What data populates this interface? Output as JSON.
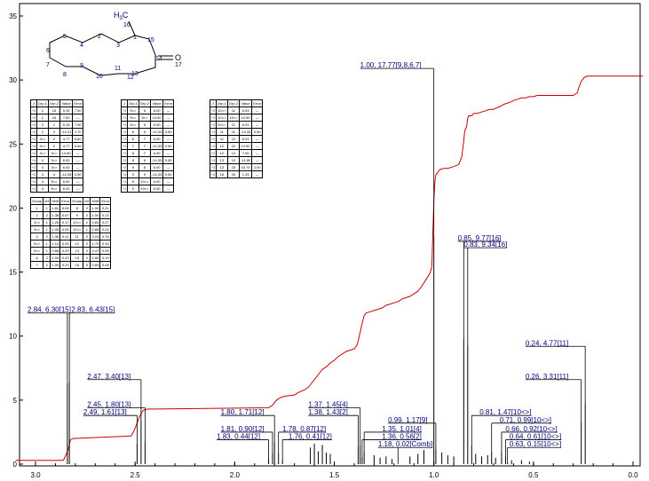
{
  "chart_data": {
    "type": "line",
    "title": "",
    "xlabel": "",
    "ylabel": "",
    "xlim": [
      3.12,
      -0.05
    ],
    "ylim": [
      0,
      37
    ],
    "x_ticks": [
      3.0,
      2.5,
      2.0,
      1.5,
      1.0,
      0.5,
      0.0
    ],
    "x_tick_labels": [
      "3.0",
      "2.5",
      "2.0",
      "1.5",
      "1.0",
      "0.5",
      "0.0"
    ],
    "y_ticks": [
      0,
      5,
      10,
      15,
      20,
      25,
      30,
      35
    ],
    "y_tick_labels": [
      "0",
      "5",
      "10",
      "15",
      "20",
      "25",
      "30",
      "35"
    ],
    "spectrum_peaks": [
      {
        "shift": 2.84,
        "height": 6.3
      },
      {
        "shift": 2.83,
        "height": 6.43
      },
      {
        "shift": 2.47,
        "height": 3.4
      },
      {
        "shift": 2.45,
        "height": 1.8
      },
      {
        "shift": 2.49,
        "height": 1.61
      },
      {
        "shift": 1.8,
        "height": 1.71
      },
      {
        "shift": 1.81,
        "height": 0.9
      },
      {
        "shift": 1.83,
        "height": 0.44
      },
      {
        "shift": 1.78,
        "height": 0.87
      },
      {
        "shift": 1.76,
        "height": 0.41
      },
      {
        "shift": 1.37,
        "height": 1.45
      },
      {
        "shift": 1.38,
        "height": 1.43
      },
      {
        "shift": 1.35,
        "height": 1.01
      },
      {
        "shift": 1.36,
        "height": 0.56
      },
      {
        "shift": 1.18,
        "height": 0.02
      },
      {
        "shift": 1.0,
        "height": 17.77
      },
      {
        "shift": 0.99,
        "height": 1.17
      },
      {
        "shift": 0.85,
        "height": 9.77
      },
      {
        "shift": 0.83,
        "height": 9.34
      },
      {
        "shift": 0.81,
        "height": 1.47
      },
      {
        "shift": 0.71,
        "height": 0.99
      },
      {
        "shift": 0.66,
        "height": 0.92
      },
      {
        "shift": 0.64,
        "height": 0.61
      },
      {
        "shift": 0.63,
        "height": 0.15
      },
      {
        "shift": 0.26,
        "height": 3.31
      },
      {
        "shift": 0.24,
        "height": 4.77
      }
    ],
    "minor_peaks": [
      {
        "shift": 1.62,
        "height": 1.3
      },
      {
        "shift": 1.6,
        "height": 1.6
      },
      {
        "shift": 1.58,
        "height": 1.0
      },
      {
        "shift": 1.56,
        "height": 1.5
      },
      {
        "shift": 1.54,
        "height": 0.9
      },
      {
        "shift": 1.52,
        "height": 0.8
      },
      {
        "shift": 1.3,
        "height": 0.7
      },
      {
        "shift": 1.27,
        "height": 0.5
      },
      {
        "shift": 1.24,
        "height": 0.6
      },
      {
        "shift": 1.21,
        "height": 0.4
      },
      {
        "shift": 1.12,
        "height": 0.6
      },
      {
        "shift": 1.08,
        "height": 0.8
      },
      {
        "shift": 1.05,
        "height": 1.1
      },
      {
        "shift": 0.96,
        "height": 0.9
      },
      {
        "shift": 0.93,
        "height": 0.7
      },
      {
        "shift": 0.9,
        "height": 0.6
      },
      {
        "shift": 0.79,
        "height": 0.8
      },
      {
        "shift": 0.76,
        "height": 0.6
      },
      {
        "shift": 0.73,
        "height": 0.7
      },
      {
        "shift": 0.69,
        "height": 0.5
      },
      {
        "shift": 0.61,
        "height": 0.3
      },
      {
        "shift": 0.56,
        "height": 0.3
      },
      {
        "shift": 0.52,
        "height": 0.2
      }
    ],
    "integral_curve": [
      [
        3.1,
        0.3
      ],
      [
        2.86,
        0.3
      ],
      [
        2.845,
        0.8
      ],
      [
        2.835,
        1.2
      ],
      [
        2.825,
        1.9
      ],
      [
        2.81,
        2.0
      ],
      [
        2.52,
        2.2
      ],
      [
        2.505,
        2.6
      ],
      [
        2.49,
        3.2
      ],
      [
        2.475,
        3.8
      ],
      [
        2.46,
        4.2
      ],
      [
        2.44,
        4.3
      ],
      [
        1.83,
        4.4
      ],
      [
        1.81,
        4.6
      ],
      [
        1.79,
        5.0
      ],
      [
        1.77,
        5.2
      ],
      [
        1.75,
        5.3
      ],
      [
        1.7,
        5.4
      ],
      [
        1.68,
        5.6
      ],
      [
        1.65,
        5.8
      ],
      [
        1.63,
        6.0
      ],
      [
        1.62,
        6.2
      ],
      [
        1.6,
        6.6
      ],
      [
        1.58,
        7.0
      ],
      [
        1.56,
        7.4
      ],
      [
        1.54,
        7.6
      ],
      [
        1.52,
        7.9
      ],
      [
        1.5,
        8.1
      ],
      [
        1.48,
        8.4
      ],
      [
        1.46,
        8.6
      ],
      [
        1.44,
        8.8
      ],
      [
        1.42,
        8.9
      ],
      [
        1.4,
        9.0
      ],
      [
        1.385,
        9.3
      ],
      [
        1.37,
        10.3
      ],
      [
        1.36,
        11.0
      ],
      [
        1.35,
        11.6
      ],
      [
        1.34,
        11.8
      ],
      [
        1.32,
        11.9
      ],
      [
        1.3,
        12.0
      ],
      [
        1.28,
        12.1
      ],
      [
        1.26,
        12.2
      ],
      [
        1.24,
        12.4
      ],
      [
        1.22,
        12.5
      ],
      [
        1.2,
        12.6
      ],
      [
        1.18,
        12.7
      ],
      [
        1.16,
        12.9
      ],
      [
        1.14,
        13.0
      ],
      [
        1.12,
        13.1
      ],
      [
        1.1,
        13.3
      ],
      [
        1.08,
        13.5
      ],
      [
        1.06,
        13.9
      ],
      [
        1.04,
        14.4
      ],
      [
        1.02,
        14.9
      ],
      [
        1.01,
        15.4
      ],
      [
        1.005,
        18.0
      ],
      [
        1.0,
        20.5
      ],
      [
        0.995,
        22.0
      ],
      [
        0.99,
        22.6
      ],
      [
        0.97,
        23.0
      ],
      [
        0.95,
        23.1
      ],
      [
        0.93,
        23.1
      ],
      [
        0.91,
        23.2
      ],
      [
        0.89,
        23.3
      ],
      [
        0.875,
        23.4
      ],
      [
        0.86,
        24.0
      ],
      [
        0.85,
        25.2
      ],
      [
        0.845,
        26.0
      ],
      [
        0.835,
        26.4
      ],
      [
        0.83,
        27.0
      ],
      [
        0.825,
        27.2
      ],
      [
        0.81,
        27.2
      ],
      [
        0.8,
        27.4
      ],
      [
        0.78,
        27.4
      ],
      [
        0.76,
        27.5
      ],
      [
        0.74,
        27.6
      ],
      [
        0.72,
        27.7
      ],
      [
        0.7,
        27.7
      ],
      [
        0.69,
        27.8
      ],
      [
        0.67,
        27.9
      ],
      [
        0.65,
        28.1
      ],
      [
        0.63,
        28.2
      ],
      [
        0.61,
        28.3
      ],
      [
        0.6,
        28.4
      ],
      [
        0.58,
        28.5
      ],
      [
        0.56,
        28.6
      ],
      [
        0.54,
        28.6
      ],
      [
        0.52,
        28.7
      ],
      [
        0.5,
        28.7
      ],
      [
        0.48,
        28.8
      ],
      [
        0.45,
        28.8
      ],
      [
        0.3,
        28.8
      ],
      [
        0.28,
        29.0
      ],
      [
        0.27,
        29.5
      ],
      [
        0.26,
        29.9
      ],
      [
        0.245,
        30.2
      ],
      [
        0.23,
        30.3
      ],
      [
        -0.05,
        30.3
      ]
    ]
  },
  "peak_labels": [
    {
      "text": "1.00, 17.77[9,8,6,7]",
      "shift": 1.0,
      "height": 17.77,
      "label_y": 30.9,
      "text_shift": 1.37,
      "side": "left"
    },
    {
      "text": "0.85, 9.77[16]",
      "shift": 0.85,
      "height": 9.77,
      "label_y": 17.4,
      "text_shift": 0.88,
      "side": "right"
    },
    {
      "text": "0.83, 9.34[16]",
      "shift": 0.83,
      "height": 9.34,
      "label_y": 16.9,
      "text_shift": 0.85,
      "side": "right"
    },
    {
      "text": "2.84, 6.30[15]",
      "shift": 2.84,
      "height": 6.3,
      "label_y": 11.8,
      "text_shift": 3.04,
      "side": "left"
    },
    {
      "text": "2.83, 6.43[15]",
      "shift": 2.83,
      "height": 6.43,
      "label_y": 11.8,
      "text_shift": 2.82,
      "side": "right"
    },
    {
      "text": "0.24, 4.77[11]",
      "shift": 0.24,
      "height": 4.77,
      "label_y": 9.2,
      "text_shift": 0.54,
      "side": "left"
    },
    {
      "text": "2.47, 3.40[13]",
      "shift": 2.47,
      "height": 3.4,
      "label_y": 6.6,
      "text_shift": 2.74,
      "side": "left"
    },
    {
      "text": "0.26, 3.31[11]",
      "shift": 0.26,
      "height": 3.31,
      "label_y": 6.6,
      "text_shift": 0.54,
      "side": "left"
    },
    {
      "text": "2.45, 1.80[13]",
      "shift": 2.45,
      "height": 1.8,
      "label_y": 4.4,
      "text_shift": 2.74,
      "side": "left"
    },
    {
      "text": "1.37, 1.45[4]",
      "shift": 1.37,
      "height": 1.45,
      "label_y": 4.4,
      "text_shift": 1.63,
      "side": "left"
    },
    {
      "text": "2.49, 1.61[13]",
      "shift": 2.49,
      "height": 1.61,
      "label_y": 3.8,
      "text_shift": 2.76,
      "side": "left"
    },
    {
      "text": "1.80, 1.71[12]",
      "shift": 1.8,
      "height": 1.71,
      "label_y": 3.8,
      "text_shift": 2.07,
      "side": "left"
    },
    {
      "text": "1.38, 1.43[2]",
      "shift": 1.38,
      "height": 1.43,
      "label_y": 3.8,
      "text_shift": 1.63,
      "side": "left"
    },
    {
      "text": "0.81, 1.47[10<>]",
      "shift": 0.81,
      "height": 1.47,
      "label_y": 3.8,
      "text_shift": 0.77,
      "side": "right"
    },
    {
      "text": "0.99, 1.17[9]",
      "shift": 0.99,
      "height": 1.17,
      "label_y": 3.2,
      "text_shift": 1.23,
      "side": "left"
    },
    {
      "text": "0.71, 0.99[10<>]",
      "shift": 0.71,
      "height": 0.99,
      "label_y": 3.2,
      "text_shift": 0.67,
      "side": "right"
    },
    {
      "text": "1.81, 0.90[12]",
      "shift": 1.81,
      "height": 0.9,
      "label_y": 2.5,
      "text_shift": 2.07,
      "side": "left"
    },
    {
      "text": "1.78, 0.87[12]",
      "shift": 1.78,
      "height": 0.87,
      "label_y": 2.5,
      "text_shift": 1.76,
      "side": "right"
    },
    {
      "text": "1.35, 1.01[4]",
      "shift": 1.35,
      "height": 1.01,
      "label_y": 2.5,
      "text_shift": 1.26,
      "side": "right"
    },
    {
      "text": "0.66, 0.92[10<>]",
      "shift": 0.66,
      "height": 0.92,
      "label_y": 2.5,
      "text_shift": 0.64,
      "side": "right"
    },
    {
      "text": "1.83, 0.44[12]",
      "shift": 1.83,
      "height": 0.44,
      "label_y": 1.9,
      "text_shift": 2.09,
      "side": "left"
    },
    {
      "text": "1.76, 0.41[12]",
      "shift": 1.76,
      "height": 0.41,
      "label_y": 1.9,
      "text_shift": 1.73,
      "side": "right"
    },
    {
      "text": "1.36, 0.56[2]",
      "shift": 1.36,
      "height": 0.56,
      "label_y": 1.9,
      "text_shift": 1.26,
      "side": "right"
    },
    {
      "text": "0.64, 0.61[10<>]",
      "shift": 0.64,
      "height": 0.61,
      "label_y": 1.9,
      "text_shift": 0.62,
      "side": "right"
    },
    {
      "text": "1.18, 0.02[Comb]",
      "shift": 1.18,
      "height": 0.02,
      "label_y": 1.3,
      "text_shift": 1.28,
      "side": "right"
    },
    {
      "text": "0.63, 0.15[10<>]",
      "shift": 0.63,
      "height": 0.15,
      "label_y": 1.3,
      "text_shift": 0.62,
      "side": "right"
    }
  ],
  "molecule": {
    "ch3_label": "H",
    "ch3_sub": "3",
    "ch3_suffix": "C",
    "oxygen": "O",
    "atoms": [
      {
        "label": "16"
      },
      {
        "label": "1"
      },
      {
        "label": "3"
      },
      {
        "label": "5"
      },
      {
        "label": "15"
      },
      {
        "label": "14"
      },
      {
        "label": "17"
      },
      {
        "label": "6"
      },
      {
        "label": "7"
      },
      {
        "label": "9"
      },
      {
        "label": "8"
      },
      {
        "label": "11"
      },
      {
        "label": "13"
      },
      {
        "label": "12"
      },
      {
        "label": "10"
      },
      {
        "label": "4"
      },
      {
        "label": "2"
      }
    ]
  },
  "tables": {
    "j_header": [
      "J",
      "Grp.1",
      "Grp.2",
      "Value",
      "Error"
    ],
    "j1_rows": [
      [
        "^J",
        "1",
        "15",
        "5.15",
        "7.50"
      ],
      [
        "^J",
        "1",
        "16",
        "7.00",
        "---"
      ],
      [
        "^J",
        "2",
        "1",
        "5.15",
        "7.50"
      ],
      [
        "^J",
        "2",
        "2",
        "-14.31",
        "1.70"
      ],
      [
        "^J",
        "3<>",
        "2",
        "4.77",
        "5.60"
      ],
      [
        "^J",
        "3<>",
        "2",
        "4.77",
        "5.60"
      ],
      [
        "^J",
        "3<>",
        "3<>",
        "14.50",
        "---"
      ],
      [
        "^J",
        "4",
        "3<>",
        "6.00",
        "---"
      ],
      [
        "^J",
        "4",
        "3<>",
        "6.00",
        "---"
      ],
      [
        "^J",
        "4",
        "4",
        "-14.33",
        "0.50"
      ],
      [
        "^J",
        "4",
        "5<>",
        "6.00",
        "---"
      ],
      [
        "^J",
        "4",
        "5<>",
        "6.00",
        "---"
      ]
    ],
    "j2_rows": [
      [
        "^J",
        "5<>",
        "6",
        "6.00",
        "---"
      ],
      [
        "^J",
        "5<>",
        "5<>",
        "14.50",
        "---"
      ],
      [
        "^J",
        "5<>",
        "6",
        "6.00",
        "---"
      ],
      [
        "^J",
        "6",
        "6",
        "-14.33",
        "0.50"
      ],
      [
        "^J",
        "6",
        "7",
        "6.00",
        "---"
      ],
      [
        "^J",
        "7",
        "7",
        "-14.33",
        "0.50"
      ],
      [
        "^J",
        "8",
        "7",
        "6.00",
        "---"
      ],
      [
        "^J",
        "8",
        "8",
        "-14.33",
        "0.50"
      ],
      [
        "^J",
        "9",
        "8",
        "6.00",
        "---"
      ],
      [
        "^J",
        "9",
        "9",
        "-14.33",
        "0.50"
      ],
      [
        "^J",
        "9",
        "10<>",
        "6.00",
        "---"
      ],
      [
        "^J",
        "9",
        "10<>",
        "6.00",
        "---"
      ]
    ],
    "j3_rows": [
      [
        "^J",
        "10<>",
        "11",
        "6.03",
        "---"
      ],
      [
        "^J",
        "10<>",
        "10<>",
        "14.50",
        "---"
      ],
      [
        "^J",
        "10<>",
        "11",
        "6.03",
        "---"
      ],
      [
        "^J",
        "11",
        "11",
        "-14.33",
        "0.50"
      ],
      [
        "^J",
        "11",
        "12",
        "6.03",
        "---"
      ],
      [
        "^J",
        "12",
        "12",
        "14.50",
        "---"
      ],
      [
        "^J",
        "12",
        "13",
        "7.05",
        "---"
      ],
      [
        "^J",
        "13",
        "13",
        "-11.80",
        "---"
      ],
      [
        "^J",
        "13",
        "15",
        "15.74",
        "2.00"
      ],
      [
        "^J",
        "16",
        "16",
        "1.33",
        "---"
      ]
    ],
    "shift_header": [
      "Group",
      "nH",
      "Shift",
      "Error",
      "Group",
      "nH",
      "Shift",
      "Error"
    ],
    "shift_rows": [
      [
        "1",
        "1",
        "1.81",
        "0.05",
        "8",
        "2",
        "1.00",
        "0.21"
      ],
      [
        "2",
        "2",
        "1.38",
        "0.07",
        "9",
        "2",
        "1.00",
        "0.23"
      ],
      [
        "3<>",
        "1",
        "1.28",
        "0.17",
        "10<>",
        "1",
        "0.83",
        "0.27"
      ],
      [
        "3<>",
        "1",
        "1.05",
        "0.05",
        "10<>",
        "1",
        "0.68",
        "0.24"
      ],
      [
        "4",
        "2",
        "1.36",
        "0.11",
        "11",
        "2",
        "0.24",
        "0.76"
      ],
      [
        "5<>",
        "1",
        "1.14",
        "0.25",
        "12",
        "2",
        "1.79",
        "0.34"
      ],
      [
        "5<>",
        "1",
        "0.88",
        "0.29",
        "13",
        "2",
        "2.47",
        "0.05"
      ],
      [
        "6",
        "2",
        "1.00",
        "0.23",
        "15",
        "2",
        "2.84",
        "0.19"
      ],
      [
        "7",
        "2",
        "1.00",
        "0.23",
        "16",
        "3",
        "0.84",
        "0.08"
      ]
    ]
  }
}
